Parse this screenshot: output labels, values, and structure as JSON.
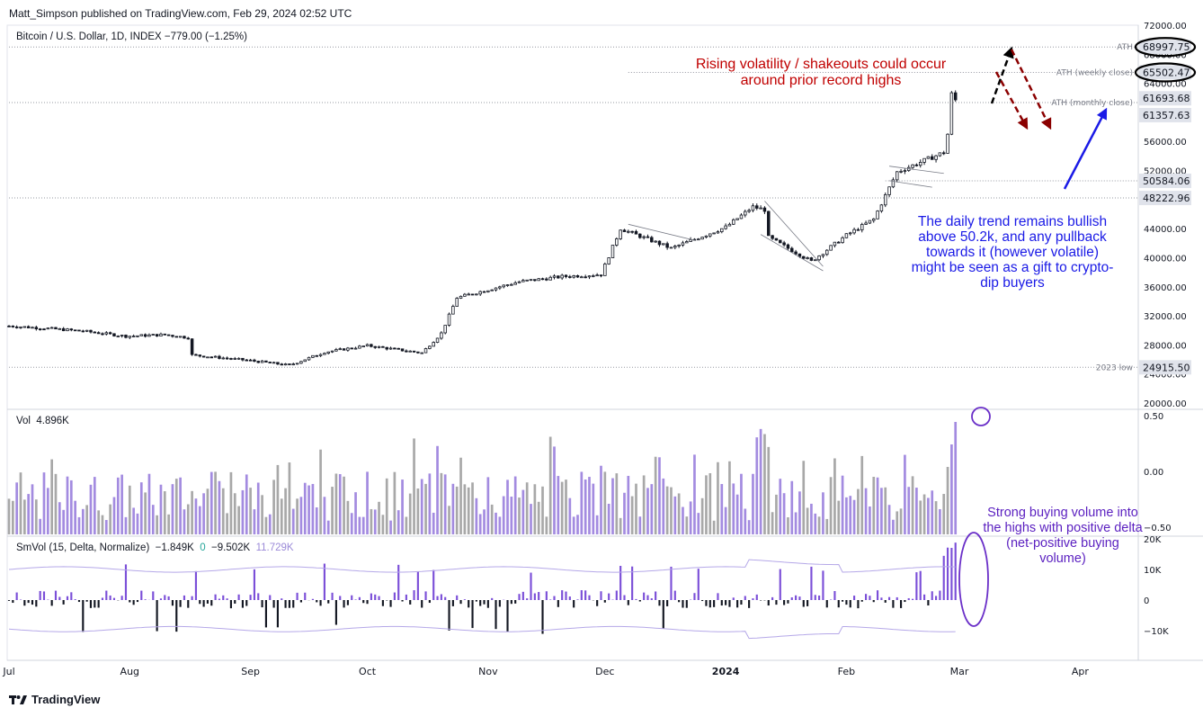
{
  "header": {
    "publisher": "Matt_Simpson published on TradingView.com, Feb 29, 2024 02:52 UTC",
    "symbol": "Bitcoin / U.S. Dollar, 1D, INDEX",
    "change": "−779.00 (−1.25%)"
  },
  "colors": {
    "candle": "#131722",
    "vol_up": "#a38be0",
    "vol_down": "#a8a8a8",
    "delta_pos": "#7b4fd8",
    "delta_neg": "#131722",
    "band": "#b5a8e8",
    "red_annotation": "#c00000",
    "blue_annotation": "#1a1ae6",
    "purple_annotation": "#5a1fc0"
  },
  "price_axis": {
    "ticks": [
      "72000.00",
      "68000.00",
      "64000.00",
      "60000.00",
      "56000.00",
      "52000.00",
      "48000.00",
      "44000.00",
      "40000.00",
      "36000.00",
      "32000.00",
      "28000.00",
      "24000.00",
      "20000.00"
    ],
    "tick_values": [
      72000,
      68000,
      64000,
      60000,
      56000,
      52000,
      48000,
      44000,
      40000,
      36000,
      32000,
      28000,
      24000,
      20000
    ]
  },
  "levels": [
    {
      "label": "ATH",
      "value": 68997.75,
      "tag": "68997.75",
      "circled": true
    },
    {
      "label": "ATH (weekly close)",
      "value": 65502.47,
      "tag": "65502.47",
      "circled": true
    },
    {
      "label": "ATH (monthly close)",
      "value": 61357.63,
      "tag": "61357.63",
      "circled": false
    },
    {
      "label": "",
      "value": 50584.06,
      "tag": "50584.06",
      "circled": false
    },
    {
      "label": "",
      "value": 48222.96,
      "tag": "48222.96",
      "circled": false
    },
    {
      "label": "2023 low",
      "value": 24915.5,
      "tag": "24915.50",
      "circled": false
    }
  ],
  "last_price_tag": "61693.68",
  "time_axis": [
    "Jul",
    "Aug",
    "Sep",
    "Oct",
    "Nov",
    "Dec",
    "2024",
    "Feb",
    "Mar",
    "Apr"
  ],
  "volume_pane": {
    "label": "Vol",
    "value": "4.896K",
    "axis": [
      "0.50",
      "0.00",
      "−0.50"
    ]
  },
  "smvol_pane": {
    "label": "SmVol (15, Delta, Normalize)",
    "v1": "−1.849K",
    "v2": "0",
    "v3": "−9.502K",
    "v4": "11.729K",
    "axis": [
      "20K",
      "10K",
      "0",
      "−10K"
    ]
  },
  "annotations": {
    "red": "Rising volatility / shakeouts could occur around prior record highs",
    "blue": "The daily trend remains bullish above 50.2k, and any pullback towards it (however volatile) might be seen as a gift to crypto-dip buyers",
    "purple": "Strong buying volume into the highs with positive delta (net-positive buying volume)"
  },
  "footer": {
    "brand": "TradingView"
  },
  "chart_data": {
    "type": "candlestick",
    "title": "Bitcoin / U.S. Dollar, 1D, INDEX",
    "ylim": [
      20000,
      72000
    ],
    "x_range": [
      "2023-07-01",
      "2024-04-15"
    ],
    "close_series": [
      {
        "date": "2023-07-01",
        "close": 30600
      },
      {
        "date": "2023-07-10",
        "close": 30300
      },
      {
        "date": "2023-07-20",
        "close": 29900
      },
      {
        "date": "2023-07-31",
        "close": 29200
      },
      {
        "date": "2023-08-10",
        "close": 29400
      },
      {
        "date": "2023-08-16",
        "close": 29000
      },
      {
        "date": "2023-08-17",
        "close": 26600
      },
      {
        "date": "2023-08-31",
        "close": 25900
      },
      {
        "date": "2023-09-11",
        "close": 25200
      },
      {
        "date": "2023-09-20",
        "close": 27000
      },
      {
        "date": "2023-10-01",
        "close": 27900
      },
      {
        "date": "2023-10-15",
        "close": 26900
      },
      {
        "date": "2023-10-20",
        "close": 29600
      },
      {
        "date": "2023-10-24",
        "close": 34500
      },
      {
        "date": "2023-11-09",
        "close": 36700
      },
      {
        "date": "2023-11-20",
        "close": 37400
      },
      {
        "date": "2023-11-30",
        "close": 37700
      },
      {
        "date": "2023-12-05",
        "close": 44000
      },
      {
        "date": "2023-12-18",
        "close": 41300
      },
      {
        "date": "2024-01-01",
        "close": 44200
      },
      {
        "date": "2024-01-08",
        "close": 47000
      },
      {
        "date": "2024-01-11",
        "close": 46600
      },
      {
        "date": "2024-01-12",
        "close": 42800
      },
      {
        "date": "2024-01-23",
        "close": 39500
      },
      {
        "date": "2024-02-01",
        "close": 43100
      },
      {
        "date": "2024-02-08",
        "close": 45300
      },
      {
        "date": "2024-02-14",
        "close": 51800
      },
      {
        "date": "2024-02-26",
        "close": 54500
      },
      {
        "date": "2024-02-27",
        "close": 57000
      },
      {
        "date": "2024-02-28",
        "close": 62500
      },
      {
        "date": "2024-02-29",
        "close": 61693.68
      }
    ],
    "last_price": 61693.68,
    "change": -779.0,
    "change_pct": -1.25,
    "horizontal_levels": [
      68997.75,
      65502.47,
      61357.63,
      50584.06,
      48222.96,
      24915.5
    ],
    "volume_last": "4.896K",
    "smvol": {
      "length": 15,
      "mode": "Delta",
      "normalize": true,
      "values": [
        -1849,
        0,
        -9502,
        11729
      ]
    }
  }
}
